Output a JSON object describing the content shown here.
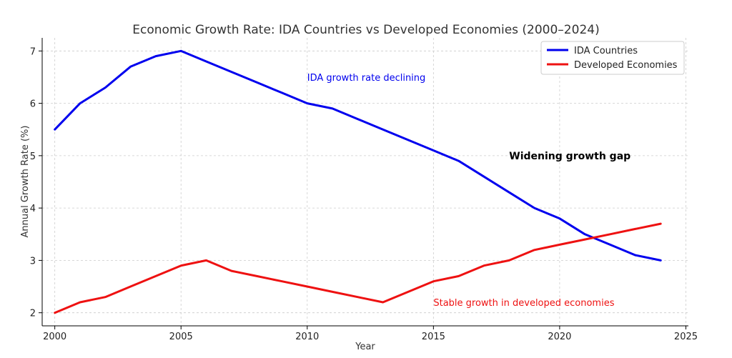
{
  "chart_data": {
    "type": "line",
    "title": "Economic Growth Rate: IDA Countries vs Developed Economies (2000–2024)",
    "xlabel": "Year",
    "ylabel": "Annual Growth Rate (%)",
    "xlim": [
      1999.5,
      2025.1
    ],
    "ylim": [
      1.75,
      7.25
    ],
    "x_ticks": [
      2000,
      2005,
      2010,
      2015,
      2020,
      2025
    ],
    "y_ticks": [
      2,
      3,
      4,
      5,
      6,
      7
    ],
    "grid": true,
    "legend_position": "top-right",
    "x": [
      2000,
      2001,
      2002,
      2003,
      2004,
      2005,
      2006,
      2007,
      2008,
      2009,
      2010,
      2011,
      2012,
      2013,
      2014,
      2015,
      2016,
      2017,
      2018,
      2019,
      2020,
      2021,
      2022,
      2023,
      2024
    ],
    "series": [
      {
        "name": "IDA Countries",
        "color": "#0000ee",
        "values": [
          5.5,
          6.0,
          6.3,
          6.7,
          6.9,
          7.0,
          6.8,
          6.6,
          6.4,
          6.2,
          6.0,
          5.9,
          5.7,
          5.5,
          5.3,
          5.1,
          4.9,
          4.6,
          4.3,
          4.0,
          3.8,
          3.5,
          3.3,
          3.1,
          3.0
        ]
      },
      {
        "name": "Developed Economies",
        "color": "#ee1111",
        "values": [
          2.0,
          2.2,
          2.3,
          2.5,
          2.7,
          2.9,
          3.0,
          2.8,
          2.7,
          2.6,
          2.5,
          2.4,
          2.3,
          2.2,
          2.4,
          2.6,
          2.7,
          2.9,
          3.0,
          3.2,
          3.3,
          3.4,
          3.5,
          3.6,
          3.7
        ]
      }
    ],
    "annotations": [
      {
        "text": "IDA growth rate declining",
        "x": 2010,
        "y": 6.5,
        "color": "#0000ee",
        "weight": "normal"
      },
      {
        "text": "Widening growth gap",
        "x": 2018,
        "y": 5.0,
        "color": "#000000",
        "weight": "bold"
      },
      {
        "text": "Stable growth in developed economies",
        "x": 2015,
        "y": 2.2,
        "color": "#ee1111",
        "weight": "normal"
      }
    ]
  }
}
